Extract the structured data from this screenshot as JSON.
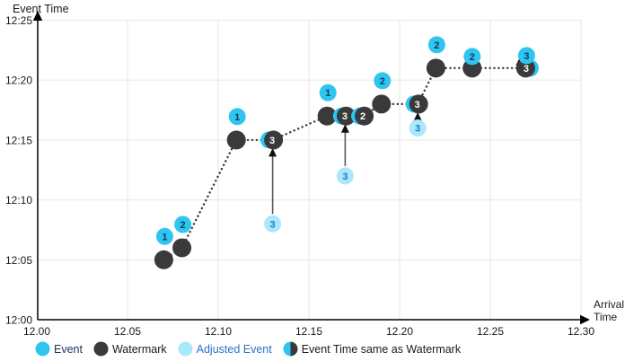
{
  "x_title": {
    "line1": "Arrival",
    "line2": "Time"
  },
  "colors": {
    "event": "#2FC5F1",
    "adjusted": "#A8E8FA",
    "watermark": "#3A393B",
    "number_navy": "#16365F",
    "number_blue": "#2A72C3",
    "number_white": "#FFFFFF",
    "text": "#1A1A1A",
    "grid": "#EAEAEA",
    "arrow": "#58585A",
    "axis": "#000000"
  },
  "legend": {
    "items": [
      {
        "label": "Event",
        "icon": "event-circle",
        "color": "#16365F"
      },
      {
        "label": "Watermark",
        "icon": "watermark-circle",
        "color": "#1A1A1A"
      },
      {
        "label": "Adjusted Event",
        "icon": "adjusted-event-circle",
        "color": "#2A72C3"
      },
      {
        "label": "Event Time same as Watermark",
        "icon": "half-circle",
        "color": "#1A1A1A"
      }
    ]
  },
  "chart_data": {
    "type": "scatter",
    "title": "",
    "x_axis": {
      "label": "Arrival Time",
      "ticks": [
        "12.00",
        "12.05",
        "12.10",
        "12.15",
        "12.20",
        "12.25",
        "12.30"
      ],
      "tick_values": [
        12.0,
        12.05,
        12.1,
        12.15,
        12.2,
        12.25,
        12.3
      ],
      "range": [
        12.0,
        12.3
      ]
    },
    "y_axis": {
      "label": "Event Time",
      "ticks": [
        "12:00",
        "12:05",
        "12:10",
        "12:15",
        "12:20",
        "12:25"
      ],
      "tick_minutes": [
        0,
        5,
        10,
        15,
        20,
        25
      ],
      "range_minutes": [
        0,
        25
      ]
    },
    "grid": true,
    "legend_position": "bottom",
    "watermark_path": [
      [
        12.07,
        5
      ],
      [
        12.08,
        6
      ],
      [
        12.11,
        15
      ],
      [
        12.13,
        15
      ],
      [
        12.16,
        17
      ],
      [
        12.17,
        17
      ],
      [
        12.18,
        17
      ],
      [
        12.19,
        18
      ],
      [
        12.21,
        18
      ],
      [
        12.22,
        21
      ],
      [
        12.24,
        21
      ],
      [
        12.27,
        21
      ]
    ],
    "markers": [
      {
        "type": "event",
        "label": "1",
        "arrival": 12.07,
        "time_min": 5
      },
      {
        "type": "event",
        "label": "2",
        "arrival": 12.08,
        "time_min": 6
      },
      {
        "type": "event",
        "label": "1",
        "arrival": 12.11,
        "time_min": 15
      },
      {
        "type": "adjusted",
        "label": "3",
        "arrival": 12.13,
        "from_min": 8,
        "to_min": 15
      },
      {
        "type": "event",
        "label": "1",
        "arrival": 12.16,
        "time_min": 17
      },
      {
        "type": "adjusted",
        "label": "3",
        "arrival": 12.17,
        "from_min": 12,
        "to_min": 17
      },
      {
        "type": "same",
        "label": "2",
        "arrival": 12.18,
        "time_min": 17
      },
      {
        "type": "event",
        "label": "2",
        "arrival": 12.19,
        "time_min": 18
      },
      {
        "type": "adjusted",
        "label": "3",
        "arrival": 12.21,
        "from_min": 16,
        "to_min": 18
      },
      {
        "type": "event",
        "label": "2",
        "arrival": 12.22,
        "time_min": 21
      },
      {
        "type": "event",
        "label": "2",
        "arrival": 12.24,
        "time_min": 21,
        "label_overlap": true
      },
      {
        "type": "same",
        "label": "3",
        "arrival": 12.27,
        "time_min": 21,
        "label_above": true,
        "crescent": "right",
        "side_arrow": true
      }
    ]
  }
}
